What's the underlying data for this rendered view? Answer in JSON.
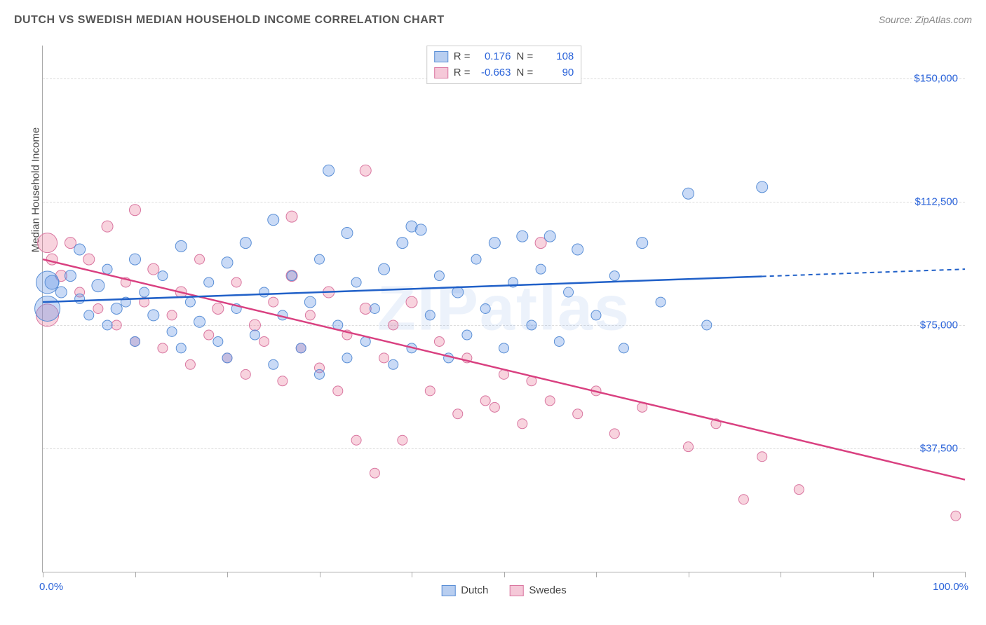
{
  "title": "DUTCH VS SWEDISH MEDIAN HOUSEHOLD INCOME CORRELATION CHART",
  "source": "Source: ZipAtlas.com",
  "watermark": "ZIPatlas",
  "y_axis": {
    "label": "Median Household Income",
    "min": 0,
    "max": 160000,
    "ticks": [
      37500,
      75000,
      112500,
      150000
    ],
    "tick_labels": [
      "$37,500",
      "$75,000",
      "$112,500",
      "$150,000"
    ],
    "label_color": "#2962d9",
    "label_fontsize": 15
  },
  "x_axis": {
    "min": 0,
    "max": 100,
    "ticks": [
      0,
      10,
      20,
      30,
      40,
      50,
      60,
      70,
      80,
      90,
      100
    ],
    "end_labels": [
      "0.0%",
      "100.0%"
    ],
    "label_color": "#2962d9",
    "label_fontsize": 15
  },
  "grid_color": "#dddddd",
  "background_color": "#ffffff",
  "series": {
    "dutch": {
      "label": "Dutch",
      "color_fill": "rgba(100,150,230,0.35)",
      "color_stroke": "#5a8fd6",
      "swatch_fill": "#b8cef0",
      "swatch_border": "#5a8fd6",
      "line_color": "#2060c8",
      "stats": {
        "R": "0.176",
        "N": "108"
      },
      "trend": {
        "y_start": 82000,
        "y_end": 92000,
        "solid_until_x": 78
      },
      "points": [
        {
          "x": 0.5,
          "y": 88000,
          "r": 16
        },
        {
          "x": 0.5,
          "y": 80000,
          "r": 18
        },
        {
          "x": 1,
          "y": 88000,
          "r": 10
        },
        {
          "x": 2,
          "y": 85000,
          "r": 8
        },
        {
          "x": 3,
          "y": 90000,
          "r": 8
        },
        {
          "x": 4,
          "y": 83000,
          "r": 7
        },
        {
          "x": 4,
          "y": 98000,
          "r": 8
        },
        {
          "x": 5,
          "y": 78000,
          "r": 7
        },
        {
          "x": 6,
          "y": 87000,
          "r": 9
        },
        {
          "x": 7,
          "y": 75000,
          "r": 7
        },
        {
          "x": 7,
          "y": 92000,
          "r": 7
        },
        {
          "x": 8,
          "y": 80000,
          "r": 8
        },
        {
          "x": 9,
          "y": 82000,
          "r": 7
        },
        {
          "x": 10,
          "y": 95000,
          "r": 8
        },
        {
          "x": 10,
          "y": 70000,
          "r": 7
        },
        {
          "x": 11,
          "y": 85000,
          "r": 7
        },
        {
          "x": 12,
          "y": 78000,
          "r": 8
        },
        {
          "x": 13,
          "y": 90000,
          "r": 7
        },
        {
          "x": 14,
          "y": 73000,
          "r": 7
        },
        {
          "x": 15,
          "y": 99000,
          "r": 8
        },
        {
          "x": 15,
          "y": 68000,
          "r": 7
        },
        {
          "x": 16,
          "y": 82000,
          "r": 7
        },
        {
          "x": 17,
          "y": 76000,
          "r": 8
        },
        {
          "x": 18,
          "y": 88000,
          "r": 7
        },
        {
          "x": 19,
          "y": 70000,
          "r": 7
        },
        {
          "x": 20,
          "y": 94000,
          "r": 8
        },
        {
          "x": 20,
          "y": 65000,
          "r": 7
        },
        {
          "x": 21,
          "y": 80000,
          "r": 7
        },
        {
          "x": 22,
          "y": 100000,
          "r": 8
        },
        {
          "x": 23,
          "y": 72000,
          "r": 7
        },
        {
          "x": 24,
          "y": 85000,
          "r": 7
        },
        {
          "x": 25,
          "y": 63000,
          "r": 7
        },
        {
          "x": 25,
          "y": 107000,
          "r": 8
        },
        {
          "x": 26,
          "y": 78000,
          "r": 7
        },
        {
          "x": 27,
          "y": 90000,
          "r": 7
        },
        {
          "x": 28,
          "y": 68000,
          "r": 7
        },
        {
          "x": 29,
          "y": 82000,
          "r": 8
        },
        {
          "x": 30,
          "y": 95000,
          "r": 7
        },
        {
          "x": 30,
          "y": 60000,
          "r": 7
        },
        {
          "x": 31,
          "y": 122000,
          "r": 8
        },
        {
          "x": 32,
          "y": 75000,
          "r": 7
        },
        {
          "x": 33,
          "y": 103000,
          "r": 8
        },
        {
          "x": 33,
          "y": 65000,
          "r": 7
        },
        {
          "x": 34,
          "y": 88000,
          "r": 7
        },
        {
          "x": 35,
          "y": 70000,
          "r": 7
        },
        {
          "x": 36,
          "y": 80000,
          "r": 7
        },
        {
          "x": 37,
          "y": 92000,
          "r": 8
        },
        {
          "x": 38,
          "y": 63000,
          "r": 7
        },
        {
          "x": 39,
          "y": 100000,
          "r": 8
        },
        {
          "x": 40,
          "y": 105000,
          "r": 8
        },
        {
          "x": 40,
          "y": 68000,
          "r": 7
        },
        {
          "x": 41,
          "y": 104000,
          "r": 8
        },
        {
          "x": 42,
          "y": 78000,
          "r": 7
        },
        {
          "x": 43,
          "y": 90000,
          "r": 7
        },
        {
          "x": 44,
          "y": 65000,
          "r": 7
        },
        {
          "x": 45,
          "y": 85000,
          "r": 8
        },
        {
          "x": 46,
          "y": 72000,
          "r": 7
        },
        {
          "x": 47,
          "y": 95000,
          "r": 7
        },
        {
          "x": 48,
          "y": 80000,
          "r": 7
        },
        {
          "x": 49,
          "y": 100000,
          "r": 8
        },
        {
          "x": 50,
          "y": 68000,
          "r": 7
        },
        {
          "x": 51,
          "y": 88000,
          "r": 7
        },
        {
          "x": 52,
          "y": 102000,
          "r": 8
        },
        {
          "x": 53,
          "y": 75000,
          "r": 7
        },
        {
          "x": 54,
          "y": 92000,
          "r": 7
        },
        {
          "x": 55,
          "y": 102000,
          "r": 8
        },
        {
          "x": 56,
          "y": 70000,
          "r": 7
        },
        {
          "x": 57,
          "y": 85000,
          "r": 7
        },
        {
          "x": 58,
          "y": 98000,
          "r": 8
        },
        {
          "x": 60,
          "y": 78000,
          "r": 7
        },
        {
          "x": 62,
          "y": 90000,
          "r": 7
        },
        {
          "x": 63,
          "y": 68000,
          "r": 7
        },
        {
          "x": 65,
          "y": 100000,
          "r": 8
        },
        {
          "x": 67,
          "y": 82000,
          "r": 7
        },
        {
          "x": 70,
          "y": 115000,
          "r": 8
        },
        {
          "x": 72,
          "y": 75000,
          "r": 7
        },
        {
          "x": 78,
          "y": 117000,
          "r": 8
        }
      ]
    },
    "swedes": {
      "label": "Swedes",
      "color_fill": "rgba(235,130,160,0.35)",
      "color_stroke": "#d976a0",
      "swatch_fill": "#f5c8d8",
      "swatch_border": "#d976a0",
      "line_color": "#d94080",
      "stats": {
        "R": "-0.663",
        "N": "90"
      },
      "trend": {
        "y_start": 95000,
        "y_end": 28000,
        "solid_until_x": 100
      },
      "points": [
        {
          "x": 0.5,
          "y": 100000,
          "r": 14
        },
        {
          "x": 0.5,
          "y": 78000,
          "r": 16
        },
        {
          "x": 1,
          "y": 95000,
          "r": 8
        },
        {
          "x": 2,
          "y": 90000,
          "r": 8
        },
        {
          "x": 3,
          "y": 100000,
          "r": 8
        },
        {
          "x": 4,
          "y": 85000,
          "r": 7
        },
        {
          "x": 5,
          "y": 95000,
          "r": 8
        },
        {
          "x": 6,
          "y": 80000,
          "r": 7
        },
        {
          "x": 7,
          "y": 105000,
          "r": 8
        },
        {
          "x": 8,
          "y": 75000,
          "r": 7
        },
        {
          "x": 9,
          "y": 88000,
          "r": 7
        },
        {
          "x": 10,
          "y": 110000,
          "r": 8
        },
        {
          "x": 10,
          "y": 70000,
          "r": 7
        },
        {
          "x": 11,
          "y": 82000,
          "r": 7
        },
        {
          "x": 12,
          "y": 92000,
          "r": 8
        },
        {
          "x": 13,
          "y": 68000,
          "r": 7
        },
        {
          "x": 14,
          "y": 78000,
          "r": 7
        },
        {
          "x": 15,
          "y": 85000,
          "r": 8
        },
        {
          "x": 16,
          "y": 63000,
          "r": 7
        },
        {
          "x": 17,
          "y": 95000,
          "r": 7
        },
        {
          "x": 18,
          "y": 72000,
          "r": 7
        },
        {
          "x": 19,
          "y": 80000,
          "r": 8
        },
        {
          "x": 20,
          "y": 65000,
          "r": 7
        },
        {
          "x": 21,
          "y": 88000,
          "r": 7
        },
        {
          "x": 22,
          "y": 60000,
          "r": 7
        },
        {
          "x": 23,
          "y": 75000,
          "r": 8
        },
        {
          "x": 24,
          "y": 70000,
          "r": 7
        },
        {
          "x": 25,
          "y": 82000,
          "r": 7
        },
        {
          "x": 26,
          "y": 58000,
          "r": 7
        },
        {
          "x": 27,
          "y": 90000,
          "r": 8
        },
        {
          "x": 27,
          "y": 108000,
          "r": 8
        },
        {
          "x": 28,
          "y": 68000,
          "r": 7
        },
        {
          "x": 29,
          "y": 78000,
          "r": 7
        },
        {
          "x": 30,
          "y": 62000,
          "r": 7
        },
        {
          "x": 31,
          "y": 85000,
          "r": 8
        },
        {
          "x": 32,
          "y": 55000,
          "r": 7
        },
        {
          "x": 33,
          "y": 72000,
          "r": 7
        },
        {
          "x": 34,
          "y": 40000,
          "r": 7
        },
        {
          "x": 35,
          "y": 80000,
          "r": 8
        },
        {
          "x": 35,
          "y": 122000,
          "r": 8
        },
        {
          "x": 36,
          "y": 30000,
          "r": 7
        },
        {
          "x": 37,
          "y": 65000,
          "r": 7
        },
        {
          "x": 38,
          "y": 75000,
          "r": 7
        },
        {
          "x": 39,
          "y": 40000,
          "r": 7
        },
        {
          "x": 40,
          "y": 82000,
          "r": 8
        },
        {
          "x": 42,
          "y": 55000,
          "r": 7
        },
        {
          "x": 43,
          "y": 70000,
          "r": 7
        },
        {
          "x": 45,
          "y": 48000,
          "r": 7
        },
        {
          "x": 46,
          "y": 65000,
          "r": 7
        },
        {
          "x": 48,
          "y": 52000,
          "r": 7
        },
        {
          "x": 49,
          "y": 50000,
          "r": 7
        },
        {
          "x": 50,
          "y": 60000,
          "r": 7
        },
        {
          "x": 52,
          "y": 45000,
          "r": 7
        },
        {
          "x": 53,
          "y": 58000,
          "r": 7
        },
        {
          "x": 54,
          "y": 100000,
          "r": 8
        },
        {
          "x": 55,
          "y": 52000,
          "r": 7
        },
        {
          "x": 58,
          "y": 48000,
          "r": 7
        },
        {
          "x": 60,
          "y": 55000,
          "r": 7
        },
        {
          "x": 62,
          "y": 42000,
          "r": 7
        },
        {
          "x": 65,
          "y": 50000,
          "r": 7
        },
        {
          "x": 70,
          "y": 38000,
          "r": 7
        },
        {
          "x": 73,
          "y": 45000,
          "r": 7
        },
        {
          "x": 76,
          "y": 22000,
          "r": 7
        },
        {
          "x": 78,
          "y": 35000,
          "r": 7
        },
        {
          "x": 82,
          "y": 25000,
          "r": 7
        },
        {
          "x": 99,
          "y": 17000,
          "r": 7
        }
      ]
    }
  },
  "legend_labels": {
    "R": "R =",
    "N": "N ="
  }
}
